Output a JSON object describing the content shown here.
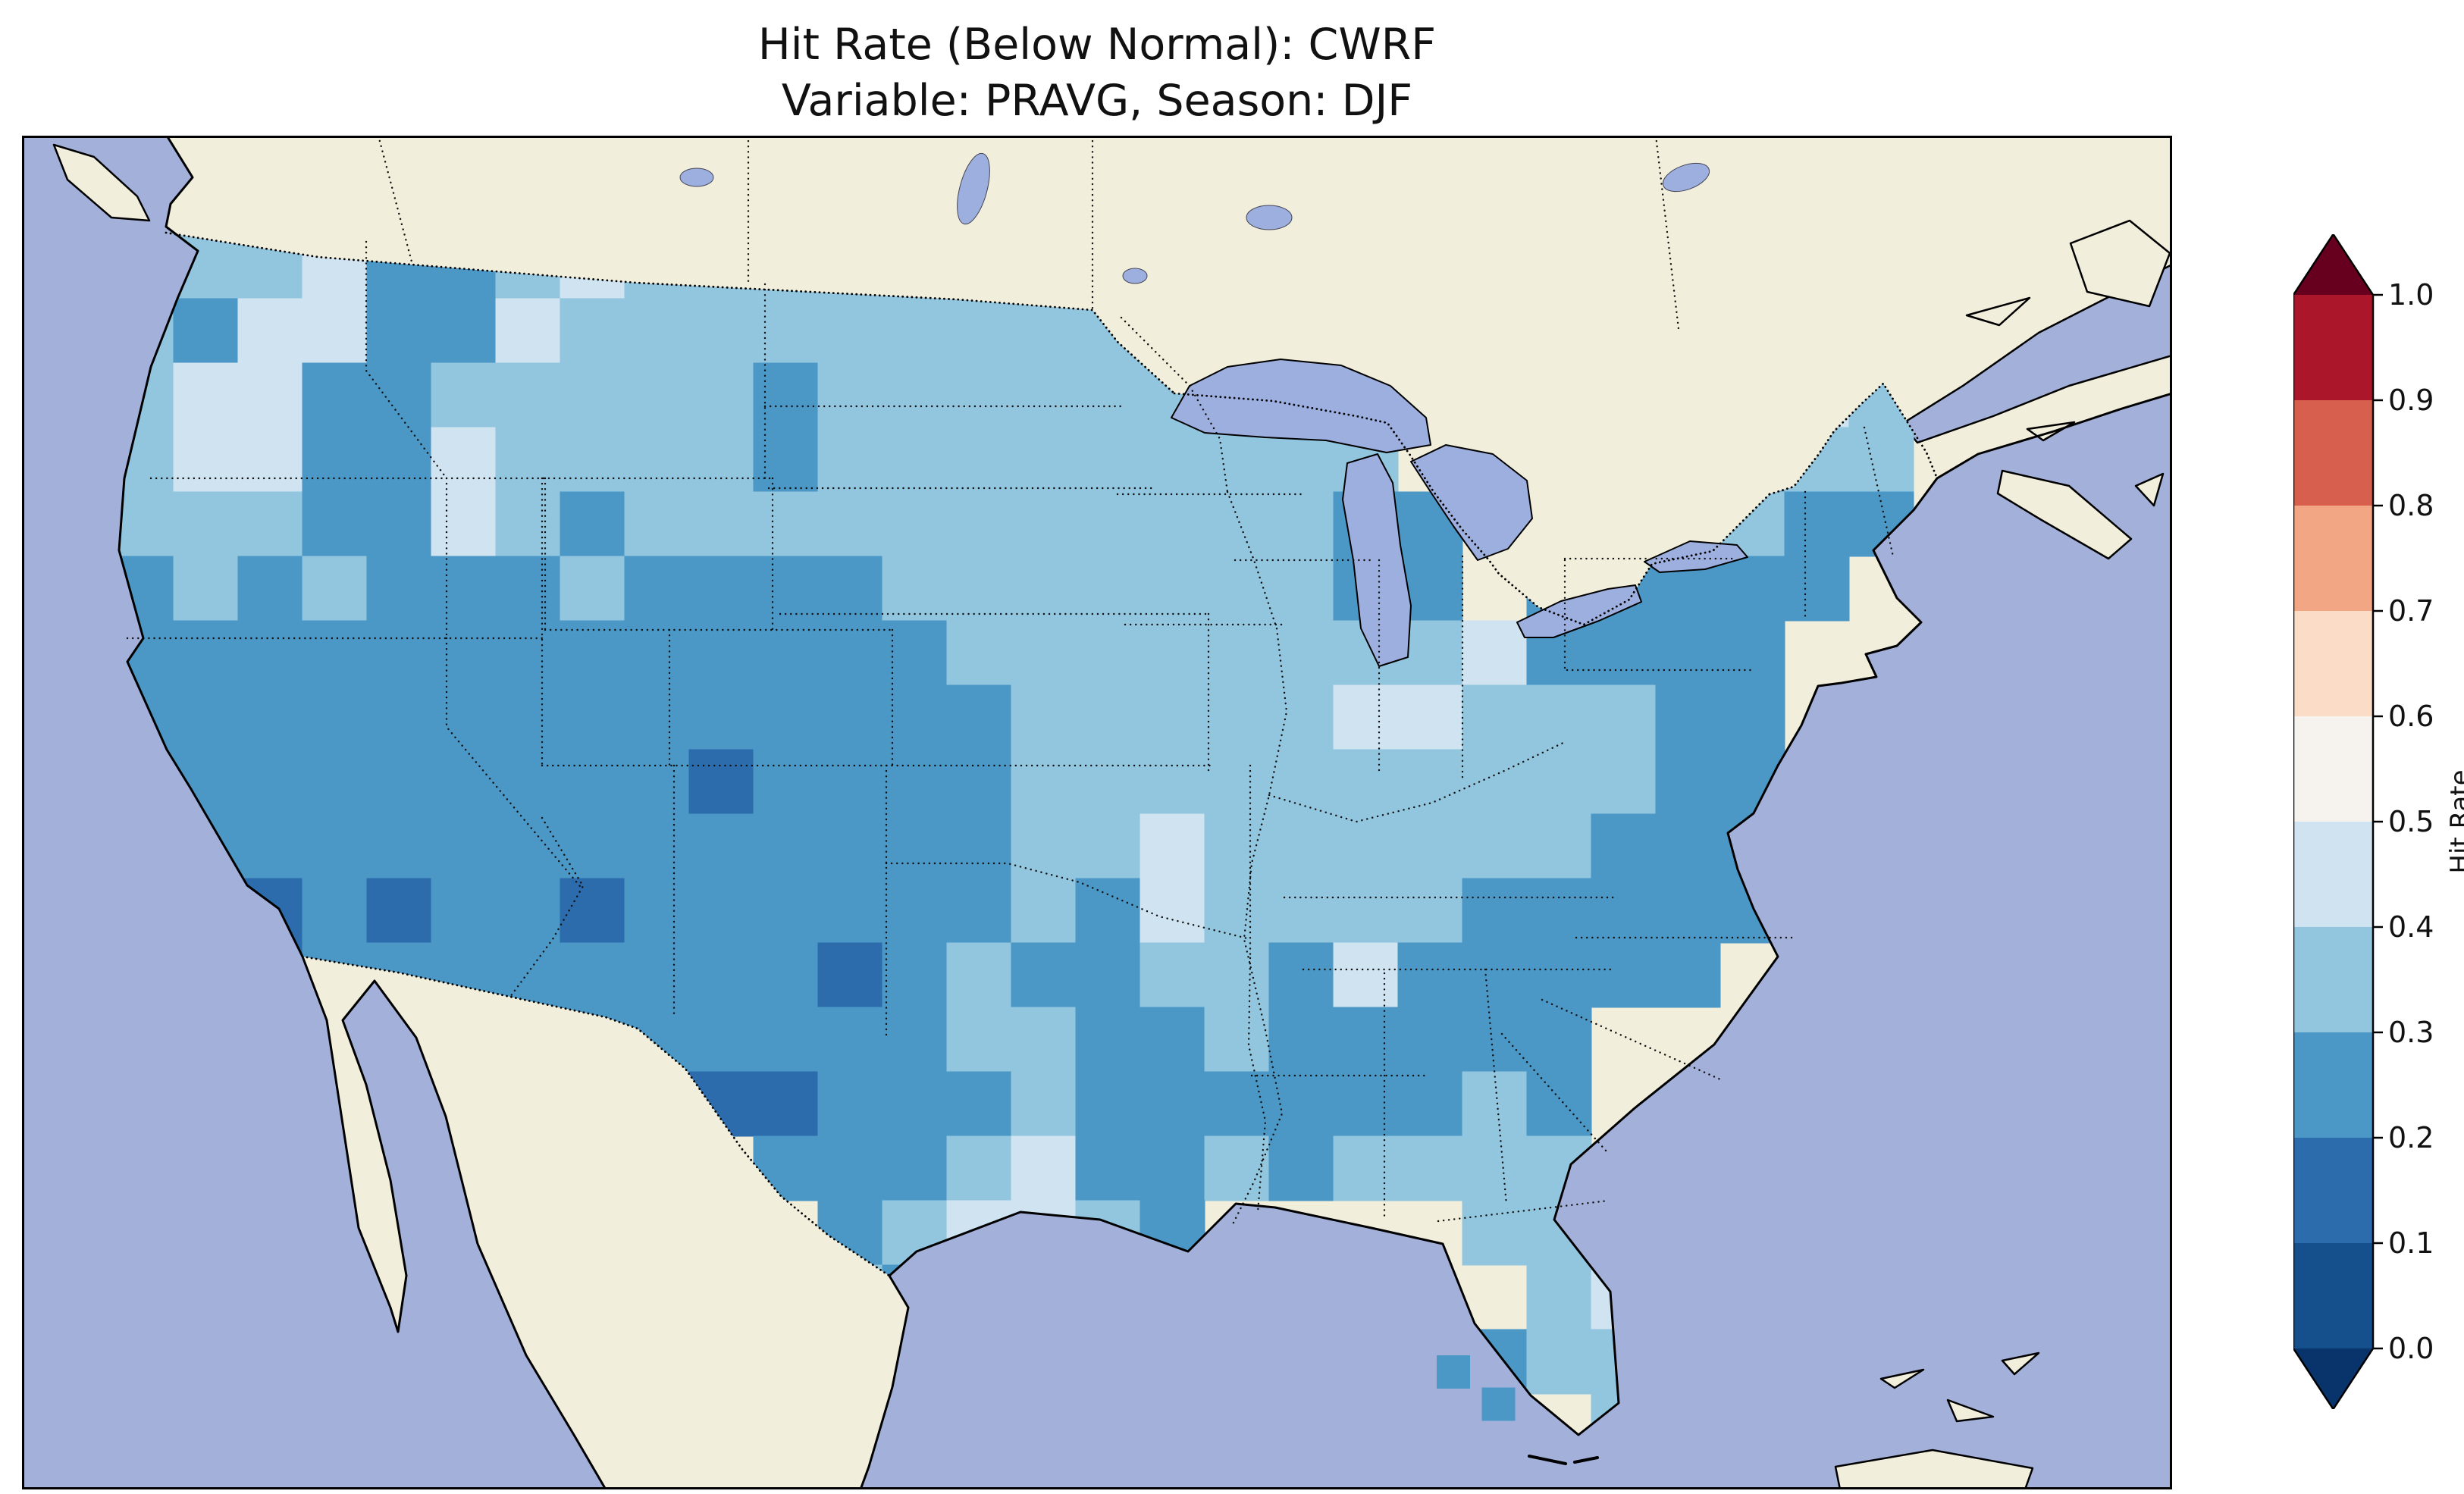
{
  "title": {
    "line1": "Hit Rate (Below Normal): CWRF",
    "line2": "Variable: PRAVG, Season: DJF"
  },
  "colorbar": {
    "label": "Hit Rate",
    "tick_labels": [
      "1.0",
      "0.9",
      "0.8",
      "0.7",
      "0.6",
      "0.5",
      "0.4",
      "0.3",
      "0.2",
      "0.1",
      "0.0"
    ],
    "segment_colors_top_to_bottom": [
      "#ab162b",
      "#d6604d",
      "#f3a683",
      "#fbdcc7",
      "#f6f3ef",
      "#cfe3f0",
      "#92c5de",
      "#4b97c6",
      "#2c6cad",
      "#15508d"
    ],
    "extend_over_color": "#67001f",
    "extend_under_color": "#08336b"
  },
  "map": {
    "ocean_color": "#a3b1da",
    "land_color": "#f1eedb",
    "lake_color": "#9dafdf",
    "border_style": "dotted"
  },
  "chart_data": {
    "type": "heatmap",
    "title": "Hit Rate (Below Normal): CWRF",
    "subtitle": "Variable: PRAVG, Season: DJF",
    "metric": "Hit Rate (Below Normal)",
    "model": "CWRF",
    "variable": "PRAVG",
    "season": "DJF",
    "region": "Continental United States",
    "colorscale": "RdBu_r",
    "colorscale_range": [
      0.0,
      1.0
    ],
    "colorscale_step": 0.1,
    "observed_value_range_on_map": [
      0.1,
      0.5
    ],
    "legend_bins": {
      "1": "0.1-0.2",
      "2": "0.2-0.3",
      "3": "0.3-0.4",
      "4": "0.4-0.5",
      "5": "0.5-0.6"
    },
    "bin_colors": {
      "1": "#2c6cad",
      "2": "#4b97c6",
      "3": "#92c5de",
      "4": "#cfe3f0",
      "5": "#f3f2ef"
    },
    "grid_note": "Approximate 30x19 coarse grid of binned hit-rate values over CONUS, row 0 = north; 0 = outside model domain",
    "grid_rows": [
      "333342234333333330000000000000",
      "332442243333333333300000000000",
      "234422333332333333300000003430",
      "234422433332333333333000002330",
      "233322432333333333332200223220",
      "223232223222233333332202222200",
      "222222222222223333333342222000",
      "222222222222222333334433322000",
      "222222222212222333333333322000",
      "022222222222222334333333222000",
      "002121221222222324333322222000",
      "000122222222123223324222220000",
      "000000002222223322322222000000",
      "000000000011222322222232000000",
      "000000000002223422323333000000",
      "000000000000234432000033400000",
      "000000000000320000000003400000",
      "000000000000020000000023300000",
      "000000000000000000000000300000"
    ],
    "offshore_cells": [
      {
        "col": 21.6,
        "row": 17.4,
        "value": "2"
      },
      {
        "col": 22.3,
        "row": 17.9,
        "value": "2"
      }
    ]
  }
}
